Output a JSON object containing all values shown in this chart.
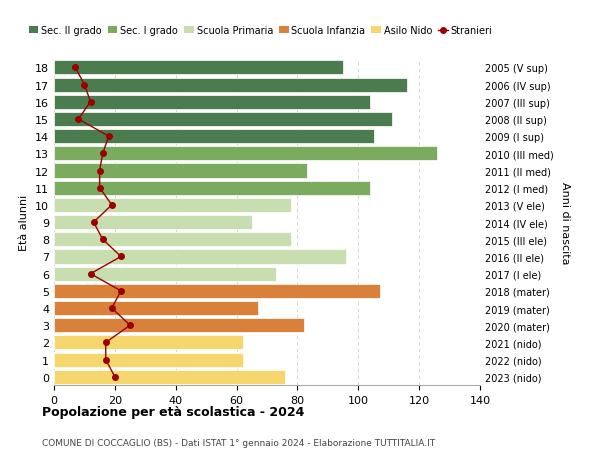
{
  "ages": [
    18,
    17,
    16,
    15,
    14,
    13,
    12,
    11,
    10,
    9,
    8,
    7,
    6,
    5,
    4,
    3,
    2,
    1,
    0
  ],
  "anni_nascita": [
    "2005 (V sup)",
    "2006 (IV sup)",
    "2007 (III sup)",
    "2008 (II sup)",
    "2009 (I sup)",
    "2010 (III med)",
    "2011 (II med)",
    "2012 (I med)",
    "2013 (V ele)",
    "2014 (IV ele)",
    "2015 (III ele)",
    "2016 (II ele)",
    "2017 (I ele)",
    "2018 (mater)",
    "2019 (mater)",
    "2020 (mater)",
    "2021 (nido)",
    "2022 (nido)",
    "2023 (nido)"
  ],
  "bar_values": [
    95,
    116,
    104,
    111,
    105,
    126,
    83,
    104,
    78,
    65,
    78,
    96,
    73,
    107,
    67,
    82,
    62,
    62,
    76
  ],
  "bar_colors": [
    "#4a7c4e",
    "#4a7c4e",
    "#4a7c4e",
    "#4a7c4e",
    "#4a7c4e",
    "#7aab5e",
    "#7aab5e",
    "#7aab5e",
    "#c8ddb0",
    "#c8ddb0",
    "#c8ddb0",
    "#c8ddb0",
    "#c8ddb0",
    "#d9813a",
    "#d9813a",
    "#d9813a",
    "#f5d76e",
    "#f5d76e",
    "#f5d76e"
  ],
  "stranieri": [
    7,
    10,
    12,
    8,
    18,
    16,
    15,
    15,
    19,
    13,
    16,
    22,
    12,
    22,
    19,
    25,
    17,
    17,
    20
  ],
  "stranieri_color": "#9b0000",
  "title": "Popolazione per età scolastica - 2024",
  "subtitle": "COMUNE DI COCCAGLIO (BS) - Dati ISTAT 1° gennaio 2024 - Elaborazione TUTTITALIA.IT",
  "ylabel_left": "Età alunni",
  "ylabel_right": "Anni di nascita",
  "xlim": [
    0,
    140
  ],
  "xticks": [
    0,
    20,
    40,
    60,
    80,
    100,
    120,
    140
  ],
  "legend_labels": [
    "Sec. II grado",
    "Sec. I grado",
    "Scuola Primaria",
    "Scuola Infanzia",
    "Asilo Nido",
    "Stranieri"
  ],
  "legend_colors": [
    "#4a7c4e",
    "#7aab5e",
    "#c8ddb0",
    "#d9813a",
    "#f5d76e",
    "#9b0000"
  ],
  "background_color": "#ffffff",
  "grid_color": "#cccccc"
}
